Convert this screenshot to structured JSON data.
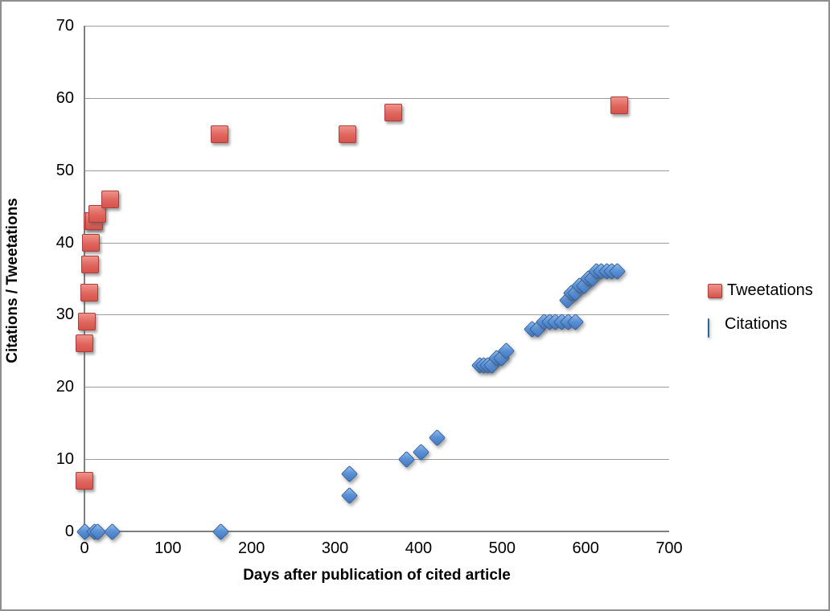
{
  "chart_data": {
    "type": "scatter",
    "title": "",
    "xlabel": "Days after publication of cited article",
    "ylabel": "Citations / Tweetations",
    "xlim": [
      0,
      700
    ],
    "ylim": [
      0,
      70
    ],
    "xticks": [
      0,
      100,
      200,
      300,
      400,
      500,
      600,
      700
    ],
    "yticks": [
      0,
      10,
      20,
      30,
      40,
      50,
      60,
      70
    ],
    "grid": "horizontal-only",
    "legend_position": "right-middle",
    "colors": {
      "tweetations": "#d5544c",
      "citations": "#4378c1",
      "gridline": "#9c9c9c",
      "frame_border": "#8e8e8e"
    },
    "series": [
      {
        "name": "Tweetations",
        "marker": "square",
        "color": "#d5544c",
        "points": [
          [
            0,
            7
          ],
          [
            0,
            26
          ],
          [
            3,
            29
          ],
          [
            6,
            33
          ],
          [
            7,
            37
          ],
          [
            8,
            40
          ],
          [
            10,
            43
          ],
          [
            12,
            43
          ],
          [
            15,
            44
          ],
          [
            31,
            46
          ],
          [
            162,
            55
          ],
          [
            315,
            55
          ],
          [
            370,
            58
          ],
          [
            640,
            59
          ]
        ]
      },
      {
        "name": "Citations",
        "marker": "diamond",
        "color": "#4378c1",
        "points": [
          [
            0,
            0
          ],
          [
            12,
            0
          ],
          [
            16,
            0
          ],
          [
            33,
            0
          ],
          [
            163,
            0
          ],
          [
            317,
            5
          ],
          [
            317,
            8
          ],
          [
            386,
            10
          ],
          [
            403,
            11
          ],
          [
            422,
            13
          ],
          [
            473,
            23
          ],
          [
            478,
            23
          ],
          [
            483,
            23
          ],
          [
            488,
            23
          ],
          [
            493,
            24
          ],
          [
            499,
            24
          ],
          [
            505,
            25
          ],
          [
            536,
            28
          ],
          [
            543,
            28
          ],
          [
            550,
            29
          ],
          [
            557,
            29
          ],
          [
            564,
            29
          ],
          [
            571,
            29
          ],
          [
            579,
            29
          ],
          [
            588,
            29
          ],
          [
            578,
            32
          ],
          [
            583,
            33
          ],
          [
            588,
            33
          ],
          [
            593,
            34
          ],
          [
            598,
            34
          ],
          [
            603,
            35
          ],
          [
            608,
            35
          ],
          [
            613,
            36
          ],
          [
            619,
            36
          ],
          [
            625,
            36
          ],
          [
            631,
            36
          ],
          [
            638,
            36
          ]
        ]
      }
    ]
  }
}
